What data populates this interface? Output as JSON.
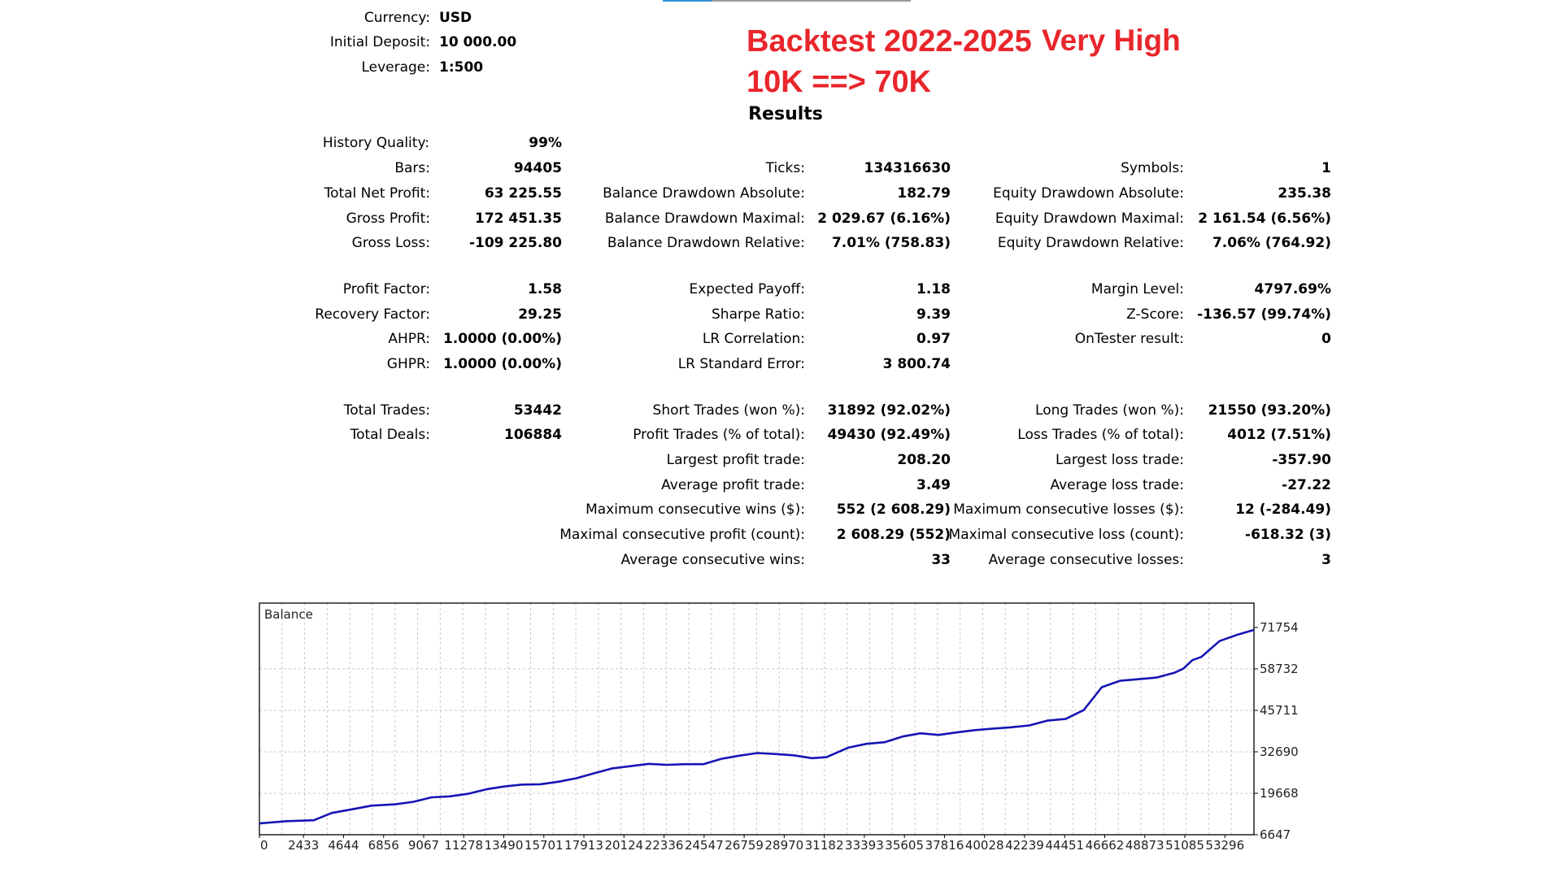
{
  "settings": [
    {
      "label": "Currency:",
      "value": "USD"
    },
    {
      "label": "Initial Deposit:",
      "value": "10 000.00"
    },
    {
      "label": "Leverage:",
      "value": "1:500"
    }
  ],
  "annotation": {
    "line1": "Backtest 2022-2025",
    "line1b": "Very High",
    "line2": "10K ==> 70K",
    "color": "#e8262b"
  },
  "results_title": "Results",
  "history_quality": {
    "label": "History Quality:",
    "value": "99%"
  },
  "stats": {
    "col1": [
      {
        "label": "Bars:",
        "value": "94405"
      },
      {
        "label": "Total Net Profit:",
        "value": "63 225.55"
      },
      {
        "label": "Gross Profit:",
        "value": "172 451.35"
      },
      {
        "label": "Gross Loss:",
        "value": "-109 225.80"
      },
      {
        "label": "Profit Factor:",
        "value": "1.58"
      },
      {
        "label": "Recovery Factor:",
        "value": "29.25"
      },
      {
        "label": "AHPR:",
        "value": "1.0000 (0.00%)"
      },
      {
        "label": "GHPR:",
        "value": "1.0000 (0.00%)"
      },
      {
        "label": "Total Trades:",
        "value": "53442"
      },
      {
        "label": "Total Deals:",
        "value": "106884"
      }
    ],
    "col2": [
      {
        "label": "Ticks:",
        "value": "134316630"
      },
      {
        "label": "Balance Drawdown Absolute:",
        "value": "182.79"
      },
      {
        "label": "Balance Drawdown Maximal:",
        "value": "2 029.67 (6.16%)"
      },
      {
        "label": "Balance Drawdown Relative:",
        "value": "7.01% (758.83)"
      },
      {
        "label": "Expected Payoff:",
        "value": "1.18"
      },
      {
        "label": "Sharpe Ratio:",
        "value": "9.39"
      },
      {
        "label": "LR Correlation:",
        "value": "0.97"
      },
      {
        "label": "LR Standard Error:",
        "value": "3 800.74"
      },
      {
        "label": "Short Trades (won %):",
        "value": "31892 (92.02%)"
      },
      {
        "label": "Profit Trades (% of total):",
        "value": "49430 (92.49%)"
      },
      {
        "label": "Largest profit trade:",
        "value": "208.20"
      },
      {
        "label": "Average profit trade:",
        "value": "3.49"
      },
      {
        "label": "Maximum consecutive wins ($):",
        "value": "552 (2 608.29)"
      },
      {
        "label": "Maximal consecutive profit (count):",
        "value": "2 608.29 (552)"
      },
      {
        "label": "Average consecutive wins:",
        "value": "33"
      }
    ],
    "col3": [
      {
        "label": "Symbols:",
        "value": "1"
      },
      {
        "label": "Equity Drawdown Absolute:",
        "value": "235.38"
      },
      {
        "label": "Equity Drawdown Maximal:",
        "value": "2 161.54 (6.56%)"
      },
      {
        "label": "Equity Drawdown Relative:",
        "value": "7.06% (764.92)"
      },
      {
        "label": "Margin Level:",
        "value": "4797.69%"
      },
      {
        "label": "Z-Score:",
        "value": "-136.57 (99.74%)"
      },
      {
        "label": "OnTester result:",
        "value": "0"
      },
      {
        "label": "Long Trades (won %):",
        "value": "21550 (93.20%)"
      },
      {
        "label": "Loss Trades (% of total):",
        "value": "4012 (7.51%)"
      },
      {
        "label": "Largest loss trade:",
        "value": "-357.90"
      },
      {
        "label": "Average loss trade:",
        "value": "-27.22"
      },
      {
        "label": "Maximum consecutive losses ($):",
        "value": "12 (-284.49)"
      },
      {
        "label": "Maximal consecutive loss (count):",
        "value": "-618.32 (3)"
      },
      {
        "label": "Average consecutive losses:",
        "value": "3"
      }
    ]
  },
  "chart_data": {
    "type": "line",
    "title": "Balance",
    "x_ticks": [
      "0",
      "2433",
      "4644",
      "6856",
      "9067",
      "11278",
      "13490",
      "15701",
      "17913",
      "20124",
      "22336",
      "24547",
      "26759",
      "28970",
      "31182",
      "33393",
      "35605",
      "37816",
      "40028",
      "42239",
      "44451",
      "46662",
      "48873",
      "51085",
      "53296"
    ],
    "y_ticks": [
      "71754",
      "58732",
      "45711",
      "32690",
      "19668",
      "6647"
    ],
    "xlim": [
      0,
      54900
    ],
    "ylim": [
      6647,
      71754
    ],
    "grid": true,
    "line_color": "#1515b4",
    "series": [
      {
        "x": [
          0,
          1500,
          3000,
          4000,
          5000,
          6200,
          7500,
          8500,
          9500,
          10500,
          11500,
          12500,
          13500,
          14500,
          15500,
          16500,
          17500,
          18500,
          19500,
          20500,
          21500,
          22500,
          23500,
          24500,
          25500,
          26500,
          27500,
          28500,
          29500,
          30500,
          31300,
          32500,
          33500,
          34500,
          35500,
          36500,
          37500,
          38500,
          39500,
          40500,
          41500,
          42500,
          43500,
          44500,
          45500,
          46500,
          47500,
          48500,
          49500,
          50500,
          51000,
          51500,
          52000,
          53000,
          54000,
          54900
        ],
        "y": [
          10200,
          10900,
          11200,
          13500,
          14500,
          15800,
          16200,
          17000,
          18400,
          18700,
          19500,
          20900,
          21800,
          22400,
          22500,
          23300,
          24400,
          26000,
          27500,
          28200,
          28900,
          28600,
          28800,
          28800,
          30500,
          31500,
          32300,
          32000,
          31600,
          30700,
          31000,
          34000,
          35200,
          35700,
          37500,
          38500,
          38000,
          38800,
          39500,
          40000,
          40400,
          41000,
          42500,
          43000,
          45800,
          53000,
          55000,
          55500,
          56000,
          57500,
          58800,
          61500,
          62500,
          67500,
          69500,
          71000
        ]
      }
    ]
  }
}
